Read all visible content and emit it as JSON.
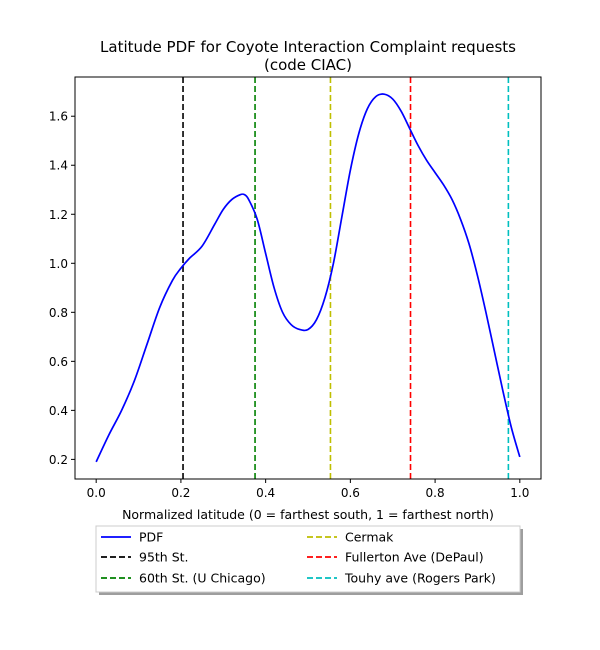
{
  "chart_data": {
    "type": "line",
    "title": "Latitude PDF for Coyote Interaction Complaint  requests",
    "subtitle": "(code CIAC)",
    "xlabel": "Normalized latitude (0 = farthest south, 1 = farthest north)",
    "ylabel": "",
    "xlim": [
      -0.05,
      1.05
    ],
    "ylim": [
      0.12,
      1.76
    ],
    "xticks": [
      0.0,
      0.2,
      0.4,
      0.6,
      0.8,
      1.0
    ],
    "xtick_labels": [
      "0.0",
      "0.2",
      "0.4",
      "0.6",
      "0.8",
      "1.0"
    ],
    "yticks": [
      0.2,
      0.4,
      0.6,
      0.8,
      1.0,
      1.2,
      1.4,
      1.6
    ],
    "ytick_labels": [
      "0.2",
      "0.4",
      "0.6",
      "0.8",
      "1.0",
      "1.2",
      "1.4",
      "1.6"
    ],
    "grid": false,
    "legend_position": "below-plot",
    "series": [
      {
        "name": "PDF",
        "color": "#0000ff",
        "x": [
          0.0,
          0.03,
          0.06,
          0.09,
          0.12,
          0.15,
          0.18,
          0.2,
          0.22,
          0.25,
          0.28,
          0.3,
          0.32,
          0.34,
          0.35,
          0.36,
          0.38,
          0.4,
          0.42,
          0.44,
          0.46,
          0.48,
          0.5,
          0.52,
          0.54,
          0.56,
          0.58,
          0.6,
          0.62,
          0.64,
          0.66,
          0.68,
          0.7,
          0.72,
          0.74,
          0.76,
          0.78,
          0.8,
          0.82,
          0.84,
          0.86,
          0.88,
          0.9,
          0.92,
          0.94,
          0.96,
          0.98,
          1.0
        ],
        "values": [
          0.19,
          0.3,
          0.4,
          0.52,
          0.67,
          0.82,
          0.93,
          0.98,
          1.02,
          1.07,
          1.16,
          1.22,
          1.26,
          1.28,
          1.28,
          1.26,
          1.18,
          1.04,
          0.9,
          0.8,
          0.75,
          0.73,
          0.73,
          0.77,
          0.86,
          1.0,
          1.19,
          1.38,
          1.53,
          1.63,
          1.68,
          1.69,
          1.67,
          1.62,
          1.55,
          1.48,
          1.42,
          1.37,
          1.32,
          1.26,
          1.18,
          1.08,
          0.95,
          0.8,
          0.64,
          0.48,
          0.33,
          0.21
        ]
      }
    ],
    "vlines": [
      {
        "name": "95th St.",
        "x": 0.205,
        "color": "#000000"
      },
      {
        "name": "60th St. (U Chicago)",
        "x": 0.375,
        "color": "#008000"
      },
      {
        "name": "Cermak",
        "x": 0.553,
        "color": "#bfbf00"
      },
      {
        "name": "Fullerton Ave (DePaul)",
        "x": 0.742,
        "color": "#ff0000"
      },
      {
        "name": "Touhy ave (Rogers Park)",
        "x": 0.973,
        "color": "#00bfbf"
      }
    ]
  }
}
